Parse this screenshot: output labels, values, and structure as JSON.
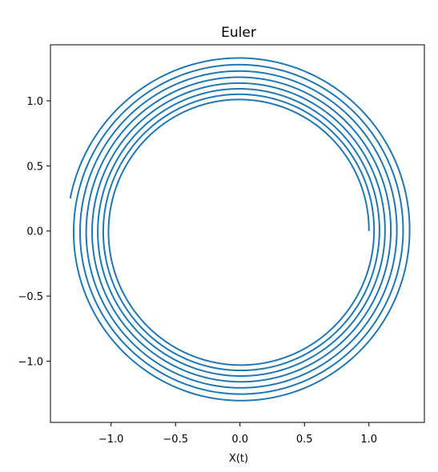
{
  "chart_data": {
    "type": "line",
    "title": "Euler",
    "xlabel": "X(t)",
    "ylabel": "",
    "xlim": [
      -1.47,
      1.43
    ],
    "ylim": [
      -1.47,
      1.43
    ],
    "grid": false,
    "legend": "none",
    "series": [
      {
        "method": "explicit Euler spiral",
        "start": [
          1.0,
          0.0
        ],
        "end": [
          -1.31,
          0.28
        ],
        "start_radius": 1.0,
        "end_radius": 1.34,
        "turns": 7.47,
        "color": "#1f77b4",
        "direction": "counterclockwise"
      }
    ],
    "xticks": [
      {
        "value": -1.0,
        "label": "−1.0"
      },
      {
        "value": -0.5,
        "label": "−0.5"
      },
      {
        "value": 0.0,
        "label": "0.0"
      },
      {
        "value": 0.5,
        "label": "0.5"
      },
      {
        "value": 1.0,
        "label": "1.0"
      }
    ],
    "yticks": [
      {
        "value": 1.0,
        "label": "1.0"
      },
      {
        "value": 0.5,
        "label": "0.5"
      },
      {
        "value": 0.0,
        "label": "0.0"
      },
      {
        "value": -0.5,
        "label": "−0.5"
      },
      {
        "value": -1.0,
        "label": "−1.0"
      }
    ]
  }
}
